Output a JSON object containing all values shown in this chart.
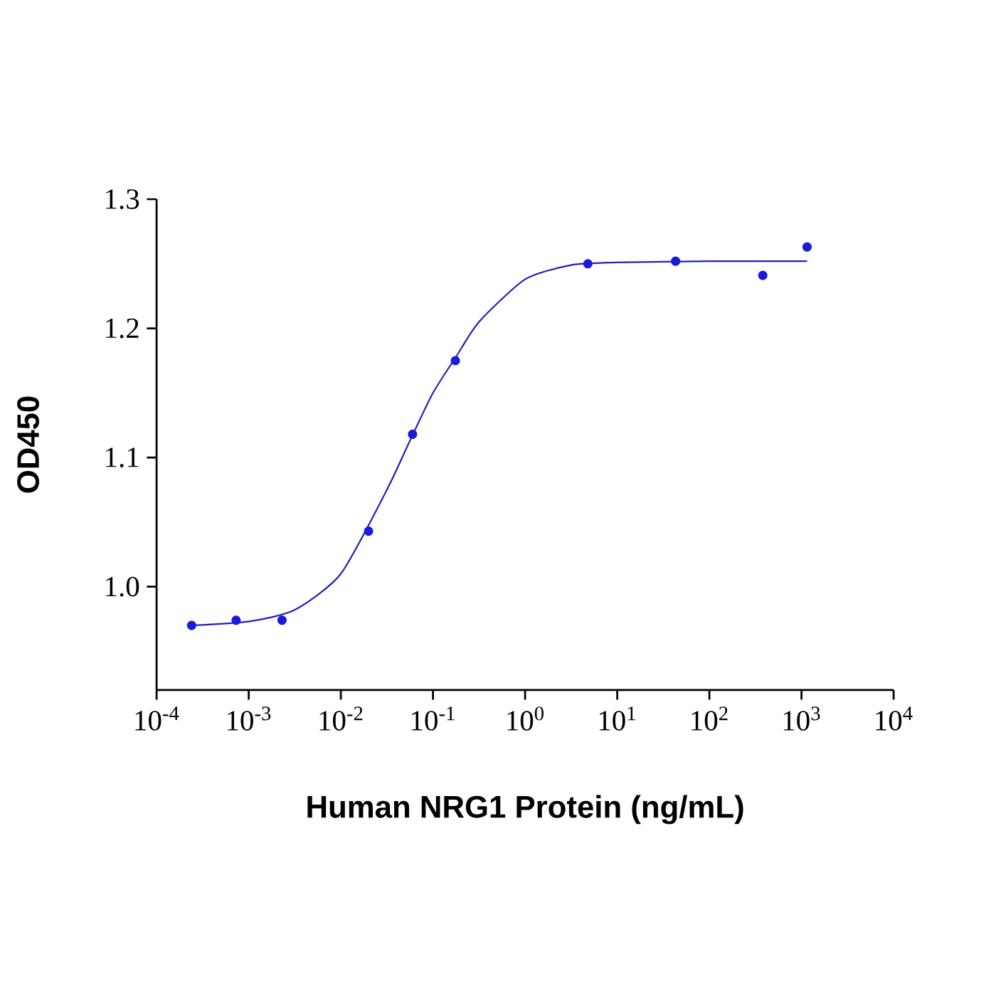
{
  "chart_data": {
    "type": "scatter",
    "xlabel": "Human NRG1 Protein (ng/mL)",
    "ylabel": "OD450",
    "log": "x",
    "grid": false,
    "marker": "circle",
    "xlim": [
      0.0001,
      10000
    ],
    "ylim": [
      0.92,
      1.3
    ],
    "xticks": [
      {
        "value": 0.0001,
        "label": "10$^{-4}$"
      },
      {
        "value": 0.001,
        "label": "10$^{-3}$"
      },
      {
        "value": 0.01,
        "label": "10$^{-2}$"
      },
      {
        "value": 0.1,
        "label": "10$^{-1}$"
      },
      {
        "value": 1,
        "label": "10$^{0}$"
      },
      {
        "value": 10,
        "label": "10$^{1}$"
      },
      {
        "value": 100,
        "label": "10$^{2}$"
      },
      {
        "value": 1000,
        "label": "10$^{3}$"
      },
      {
        "value": 10000,
        "label": "10$^{4}$"
      }
    ],
    "yticks": [
      {
        "value": 1.0,
        "label": "1.0"
      },
      1.1,
      1.2,
      1.3
    ],
    "series": [
      {
        "color": "#1a1ad8",
        "x": [
          0.00024,
          0.00073,
          0.0023,
          0.02,
          0.06,
          0.175,
          4.8,
          43,
          380,
          1150
        ],
        "values": [
          0.97,
          0.974,
          0.974,
          1.043,
          1.118,
          1.175,
          1.25,
          1.252,
          1.241,
          1.263
        ]
      },
      {
        "type": "line",
        "marker": "none",
        "color": "#2020b8",
        "x": [
          0.00024,
          0.001,
          0.00316,
          0.01,
          0.0316,
          0.0562,
          0.1,
          0.178,
          0.316,
          1,
          3.16,
          10,
          100,
          1150
        ],
        "values": [
          0.97,
          0.973,
          0.982,
          1.01,
          1.075,
          1.113,
          1.15,
          1.178,
          1.205,
          1.238,
          1.249,
          1.251,
          1.252,
          1.252
        ]
      }
    ]
  }
}
